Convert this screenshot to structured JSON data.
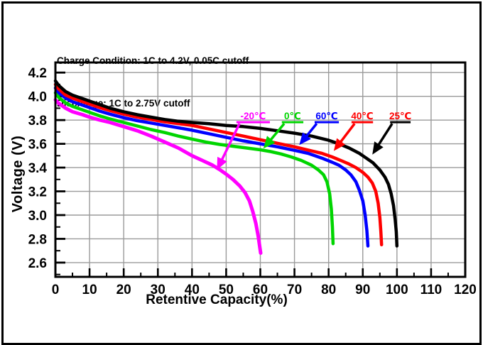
{
  "header": {
    "line1": "Charge Condition: 1C to 4.2V, 0.05C cutoff",
    "line2": "Discharge: 1C to 2.75V cutoff"
  },
  "chart_data": {
    "type": "line",
    "xlabel": "Retentive Capacity(%)",
    "ylabel": "Voltage (V)",
    "grid": "on",
    "grid_color": "#9a9a9a",
    "frame_color": "#000000",
    "x_axis": {
      "min": 0,
      "max": 120,
      "ticks": [
        0,
        10,
        20,
        30,
        40,
        50,
        60,
        70,
        80,
        90,
        100,
        110,
        120
      ],
      "minor_ticks": [
        5,
        15,
        25,
        35,
        45,
        55,
        65,
        75,
        85,
        95,
        105,
        115
      ]
    },
    "y_axis": {
      "min": 2.48,
      "max": 4.285,
      "ticks": [
        2.6,
        2.8,
        3.0,
        3.2,
        3.4,
        3.6,
        3.8,
        4.0,
        4.2
      ],
      "minor_ticks": [
        2.5,
        2.7,
        2.9,
        3.1,
        3.3,
        3.5,
        3.7,
        3.9,
        4.1
      ]
    },
    "series": [
      {
        "name": "-20C",
        "label": "-20℃",
        "color": "#ff00ff",
        "width": 5,
        "points": [
          [
            0,
            3.97
          ],
          [
            1,
            3.94
          ],
          [
            3,
            3.9
          ],
          [
            5,
            3.87
          ],
          [
            8,
            3.845
          ],
          [
            10,
            3.825
          ],
          [
            13,
            3.8
          ],
          [
            16,
            3.78
          ],
          [
            20,
            3.745
          ],
          [
            24,
            3.71
          ],
          [
            28,
            3.665
          ],
          [
            32,
            3.615
          ],
          [
            36,
            3.565
          ],
          [
            40,
            3.5
          ],
          [
            43,
            3.46
          ],
          [
            46,
            3.42
          ],
          [
            48,
            3.385
          ],
          [
            50,
            3.345
          ],
          [
            52,
            3.3
          ],
          [
            54,
            3.245
          ],
          [
            55.5,
            3.19
          ],
          [
            56.8,
            3.12
          ],
          [
            57.8,
            3.03
          ],
          [
            58.7,
            2.93
          ],
          [
            59.4,
            2.82
          ],
          [
            59.9,
            2.72
          ],
          [
            60.1,
            2.68
          ]
        ]
      },
      {
        "name": "0C",
        "label": "0℃",
        "color": "#00d500",
        "width": 4.5,
        "points": [
          [
            0,
            4.03
          ],
          [
            1,
            3.99
          ],
          [
            3,
            3.945
          ],
          [
            5,
            3.915
          ],
          [
            8,
            3.885
          ],
          [
            10,
            3.865
          ],
          [
            13,
            3.835
          ],
          [
            16,
            3.81
          ],
          [
            20,
            3.78
          ],
          [
            24,
            3.75
          ],
          [
            28,
            3.72
          ],
          [
            32,
            3.695
          ],
          [
            36,
            3.665
          ],
          [
            40,
            3.64
          ],
          [
            44,
            3.615
          ],
          [
            48,
            3.595
          ],
          [
            52,
            3.58
          ],
          [
            56,
            3.565
          ],
          [
            60,
            3.55
          ],
          [
            63,
            3.535
          ],
          [
            66,
            3.515
          ],
          [
            69,
            3.49
          ],
          [
            72,
            3.46
          ],
          [
            75,
            3.42
          ],
          [
            77,
            3.38
          ],
          [
            78.5,
            3.34
          ],
          [
            79.5,
            3.28
          ],
          [
            80.3,
            3.18
          ],
          [
            80.8,
            3.05
          ],
          [
            81.1,
            2.9
          ],
          [
            81.3,
            2.76
          ]
        ]
      },
      {
        "name": "60C",
        "label": "60℃",
        "color": "#0000ff",
        "width": 4.5,
        "points": [
          [
            0,
            4.07
          ],
          [
            1,
            4.03
          ],
          [
            3,
            3.985
          ],
          [
            5,
            3.955
          ],
          [
            8,
            3.925
          ],
          [
            10,
            3.905
          ],
          [
            13,
            3.875
          ],
          [
            16,
            3.85
          ],
          [
            20,
            3.82
          ],
          [
            24,
            3.795
          ],
          [
            28,
            3.775
          ],
          [
            32,
            3.755
          ],
          [
            36,
            3.735
          ],
          [
            40,
            3.715
          ],
          [
            45,
            3.685
          ],
          [
            50,
            3.655
          ],
          [
            55,
            3.625
          ],
          [
            60,
            3.6
          ],
          [
            65,
            3.575
          ],
          [
            70,
            3.545
          ],
          [
            74,
            3.52
          ],
          [
            78,
            3.48
          ],
          [
            81,
            3.445
          ],
          [
            83,
            3.42
          ],
          [
            85,
            3.38
          ],
          [
            86.5,
            3.34
          ],
          [
            88,
            3.28
          ],
          [
            89,
            3.21
          ],
          [
            90,
            3.12
          ],
          [
            90.7,
            3.0
          ],
          [
            91.2,
            2.87
          ],
          [
            91.5,
            2.74
          ]
        ]
      },
      {
        "name": "40C",
        "label": "40℃",
        "color": "#ff0000",
        "width": 4.5,
        "points": [
          [
            0,
            4.1
          ],
          [
            1,
            4.06
          ],
          [
            3,
            4.01
          ],
          [
            5,
            3.985
          ],
          [
            8,
            3.955
          ],
          [
            10,
            3.935
          ],
          [
            13,
            3.905
          ],
          [
            16,
            3.88
          ],
          [
            20,
            3.85
          ],
          [
            24,
            3.825
          ],
          [
            28,
            3.805
          ],
          [
            32,
            3.785
          ],
          [
            36,
            3.77
          ],
          [
            40,
            3.755
          ],
          [
            45,
            3.725
          ],
          [
            50,
            3.695
          ],
          [
            55,
            3.665
          ],
          [
            60,
            3.635
          ],
          [
            65,
            3.605
          ],
          [
            70,
            3.575
          ],
          [
            75,
            3.54
          ],
          [
            78,
            3.52
          ],
          [
            81,
            3.49
          ],
          [
            84,
            3.455
          ],
          [
            86,
            3.43
          ],
          [
            88,
            3.4
          ],
          [
            90,
            3.36
          ],
          [
            91.5,
            3.32
          ],
          [
            92.8,
            3.27
          ],
          [
            93.8,
            3.2
          ],
          [
            94.5,
            3.1
          ],
          [
            95,
            2.98
          ],
          [
            95.3,
            2.86
          ],
          [
            95.5,
            2.75
          ]
        ]
      },
      {
        "name": "25C",
        "label": "25℃",
        "color": "#000000",
        "width": 4.5,
        "points": [
          [
            0,
            4.13
          ],
          [
            1,
            4.09
          ],
          [
            3,
            4.04
          ],
          [
            5,
            4.01
          ],
          [
            8,
            3.98
          ],
          [
            10,
            3.96
          ],
          [
            13,
            3.93
          ],
          [
            16,
            3.9
          ],
          [
            20,
            3.87
          ],
          [
            24,
            3.845
          ],
          [
            28,
            3.825
          ],
          [
            32,
            3.805
          ],
          [
            36,
            3.79
          ],
          [
            40,
            3.78
          ],
          [
            45,
            3.77
          ],
          [
            50,
            3.755
          ],
          [
            55,
            3.745
          ],
          [
            60,
            3.73
          ],
          [
            65,
            3.71
          ],
          [
            70,
            3.69
          ],
          [
            75,
            3.665
          ],
          [
            80,
            3.63
          ],
          [
            83,
            3.6
          ],
          [
            86,
            3.565
          ],
          [
            89,
            3.52
          ],
          [
            91,
            3.48
          ],
          [
            93,
            3.44
          ],
          [
            95,
            3.38
          ],
          [
            96.5,
            3.32
          ],
          [
            97.5,
            3.26
          ],
          [
            98.3,
            3.18
          ],
          [
            99,
            3.08
          ],
          [
            99.5,
            2.96
          ],
          [
            99.8,
            2.86
          ],
          [
            100,
            2.74
          ]
        ]
      }
    ],
    "annotations": [
      {
        "label": "-20℃",
        "text_color": "#ff00ff",
        "line_color": "#ff00ff",
        "underline_x": [
          53.0,
          62.8
        ],
        "underline_v": 3.782,
        "arrow_from": [
          53.9,
          3.77
        ],
        "arrow_to": [
          47.3,
          3.38
        ]
      },
      {
        "label": "0℃",
        "text_color": "#00d500",
        "line_color": "#00d500",
        "underline_x": [
          66.3,
          72.6
        ],
        "underline_v": 3.782,
        "arrow_from": [
          67.0,
          3.77
        ],
        "arrow_to": [
          60.9,
          3.56
        ]
      },
      {
        "label": "60℃",
        "text_color": "#0000ff",
        "line_color": "#0000ff",
        "underline_x": [
          75.9,
          83.0
        ],
        "underline_v": 3.782,
        "arrow_from": [
          76.5,
          3.77
        ],
        "arrow_to": [
          71.4,
          3.59
        ]
      },
      {
        "label": "40℃",
        "text_color": "#ff0000",
        "line_color": "#ff0000",
        "underline_x": [
          86.7,
          93.0
        ],
        "underline_v": 3.782,
        "arrow_from": [
          87.6,
          3.77
        ],
        "arrow_to": [
          81.5,
          3.54
        ]
      },
      {
        "label": "25℃",
        "text_color": "#ff0000",
        "line_color": "#000000",
        "underline_x": [
          98.0,
          104.0
        ],
        "underline_v": 3.782,
        "arrow_from": [
          98.6,
          3.77
        ],
        "arrow_to": [
          92.8,
          3.51
        ]
      }
    ]
  }
}
